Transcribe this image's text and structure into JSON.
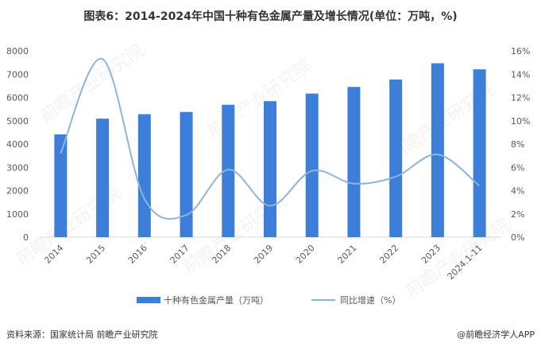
{
  "title": "图表6：2014-2024年中国十种有色金属产量及增长情况(单位：万吨，%)",
  "source": "资料来源：国家统计局 前瞻产业研究院",
  "credit": "@前瞻经济学人APP",
  "watermark": "前瞻产业研究院",
  "chart_data": {
    "type": "bar+line",
    "categories": [
      "2014",
      "2015",
      "2016",
      "2017",
      "2018",
      "2019",
      "2020",
      "2021",
      "2022",
      "2023",
      "2024.1-11"
    ],
    "series": [
      {
        "name": "十种有色金属产量（万吨）",
        "type": "bar",
        "axis": "left",
        "color": "#3d7fd8",
        "values": [
          4417,
          5090,
          5283,
          5378,
          5688,
          5842,
          6168,
          6454,
          6774,
          7470,
          7210
        ]
      },
      {
        "name": "同比增速（%）",
        "type": "line",
        "axis": "right",
        "color": "#8fb4d9",
        "smooth": true,
        "values": [
          7.2,
          15.3,
          3.3,
          1.9,
          5.8,
          2.7,
          5.7,
          4.6,
          5.2,
          7.1,
          4.4
        ]
      }
    ],
    "yleft": {
      "lim": [
        0,
        8000
      ],
      "ticks": [
        "0",
        "1000",
        "2000",
        "3000",
        "4000",
        "5000",
        "6000",
        "7000",
        "8000"
      ]
    },
    "yright": {
      "lim": [
        0,
        16
      ],
      "ticks": [
        "0%",
        "2%",
        "4%",
        "6%",
        "8%",
        "10%",
        "12%",
        "14%",
        "16%"
      ]
    },
    "grid": false,
    "legend": "bottom"
  }
}
